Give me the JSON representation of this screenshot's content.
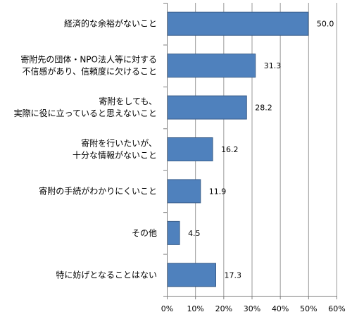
{
  "chart_data": {
    "type": "bar",
    "orientation": "horizontal",
    "categories": [
      [
        "経済的な余裕がないこと"
      ],
      [
        "寄附先の団体・NPO法人等に対する",
        "不信感があり、信頼度に欠けること"
      ],
      [
        "寄附をしても、",
        "実際に役に立っていると思えないこと"
      ],
      [
        "寄附を行いたいが、",
        "十分な情報がないこと"
      ],
      [
        "寄附の手続がわかりにくいこと"
      ],
      [
        "その他"
      ],
      [
        "特に妨げとなることはない"
      ]
    ],
    "values": [
      50.0,
      31.3,
      28.2,
      16.2,
      11.9,
      4.5,
      17.3
    ],
    "value_labels": [
      "50.0",
      "31.3",
      "28.2",
      "16.2",
      "11.9",
      "4.5",
      "17.3"
    ],
    "xlim": [
      0,
      60
    ],
    "xticks": [
      0,
      10,
      20,
      30,
      40,
      50,
      60
    ],
    "xtick_labels": [
      "0%",
      "10%",
      "20%",
      "30%",
      "40%",
      "50%",
      "60%"
    ],
    "grid": true,
    "bar_color": "#4f81bd",
    "bar_edge_color": "#385d8a",
    "grid_color": "#9a9a9a"
  }
}
